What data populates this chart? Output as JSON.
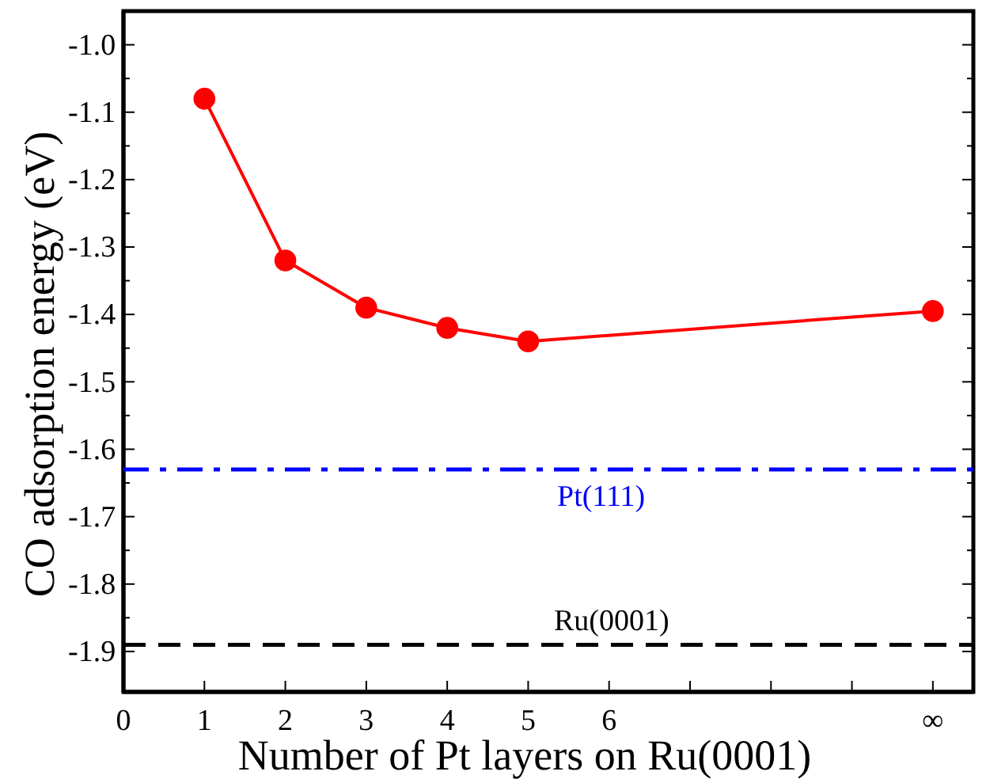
{
  "chart_data": {
    "type": "line",
    "xlabel": "Number of Pt layers on Ru(0001)",
    "ylabel": "CO adsorption energy (eV)",
    "x": [
      1,
      2,
      3,
      4,
      5,
      10
    ],
    "series": [
      {
        "color": "#ff0000",
        "values": [
          -1.08,
          -1.32,
          -1.39,
          -1.42,
          -1.44,
          -1.395
        ]
      }
    ],
    "marker": "circle",
    "line_style": "solid",
    "xlim": [
      0,
      10.5
    ],
    "xticks": [
      0,
      1,
      2,
      3,
      4,
      5,
      6,
      {
        "value": 7,
        "label": null
      },
      {
        "value": 8,
        "label": null
      },
      {
        "value": 9,
        "label": null
      },
      {
        "value": 10,
        "label": "∞"
      }
    ],
    "ylim": [
      -1.96,
      -0.95
    ],
    "yticks": [
      -1.9,
      -1.8,
      -1.7,
      -1.6,
      -1.5,
      -1.4,
      -1.3,
      -1.2,
      -1.1,
      {
        "value": -1.0,
        "label": "-1.0"
      }
    ],
    "ref_lines": [
      {
        "axis": "y",
        "value": -1.63,
        "label": "Pt(111)",
        "color": "#0000ff",
        "line_style": "dashdot"
      },
      {
        "axis": "y",
        "value": -1.89,
        "label": "Ru(0001)",
        "color": "#000000",
        "line_style": "dashed"
      }
    ],
    "grid": false
  }
}
